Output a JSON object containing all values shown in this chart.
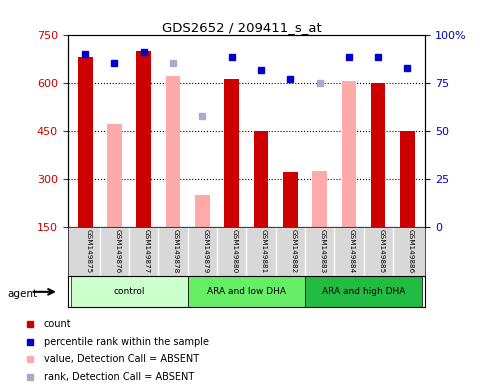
{
  "title": "GDS2652 / 209411_s_at",
  "samples": [
    "GSM149875",
    "GSM149876",
    "GSM149877",
    "GSM149878",
    "GSM149879",
    "GSM149880",
    "GSM149881",
    "GSM149882",
    "GSM149883",
    "GSM149884",
    "GSM149885",
    "GSM149886"
  ],
  "groups": [
    {
      "label": "control",
      "start": 0,
      "end": 4
    },
    {
      "label": "ARA and low DHA",
      "start": 4,
      "end": 8
    },
    {
      "label": "ARA and high DHA",
      "start": 8,
      "end": 12
    }
  ],
  "count_values": [
    680,
    null,
    700,
    null,
    null,
    610,
    450,
    320,
    null,
    null,
    600,
    450
  ],
  "count_absent_values": [
    null,
    470,
    null,
    620,
    250,
    null,
    null,
    null,
    325,
    605,
    null,
    null
  ],
  "percentile_values": [
    690,
    660,
    695,
    null,
    null,
    680,
    640,
    610,
    null,
    680,
    680,
    645
  ],
  "percentile_absent_values": [
    null,
    null,
    null,
    660,
    495,
    null,
    null,
    null,
    600,
    null,
    null,
    null
  ],
  "ylim_left": [
    150,
    750
  ],
  "ylim_right": [
    0,
    100
  ],
  "yticks_left": [
    150,
    300,
    450,
    600,
    750
  ],
  "yticks_right": [
    0,
    25,
    50,
    75,
    100
  ],
  "count_color": "#cc0000",
  "count_absent_color": "#ffaaaa",
  "percentile_color": "#0000cc",
  "percentile_absent_color": "#aaaacc",
  "background_color": "#ffffff",
  "axis_label_color_left": "#cc0000",
  "axis_label_color_right": "#0000cc",
  "group_colors": [
    "#ccffcc",
    "#66ee66",
    "#22bb44"
  ],
  "agent_label": "agent"
}
